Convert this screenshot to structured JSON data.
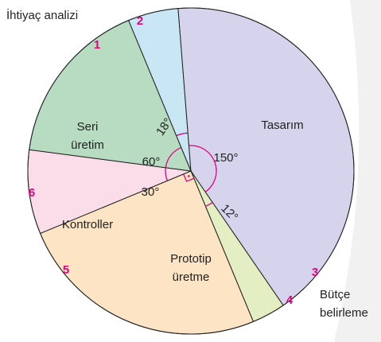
{
  "chart_data": {
    "type": "pie",
    "categories": [
      "İhtiyaç analizi",
      "Tasarım",
      "Bütçe belirleme",
      "Prototip üretme",
      "Kontroller",
      "Seri üretim"
    ],
    "values": [
      18,
      150,
      12,
      90,
      30,
      60
    ],
    "value_labels": [
      "18°",
      "150°",
      "12°",
      null,
      "30°",
      "60°"
    ],
    "numbers": [
      1,
      2,
      3,
      4,
      5,
      6
    ],
    "colors": [
      "#c8e6f3",
      "#d6d4ec",
      "#e3eec3",
      "#fde4c4",
      "#fadde9",
      "#b7dcc1"
    ]
  }
}
